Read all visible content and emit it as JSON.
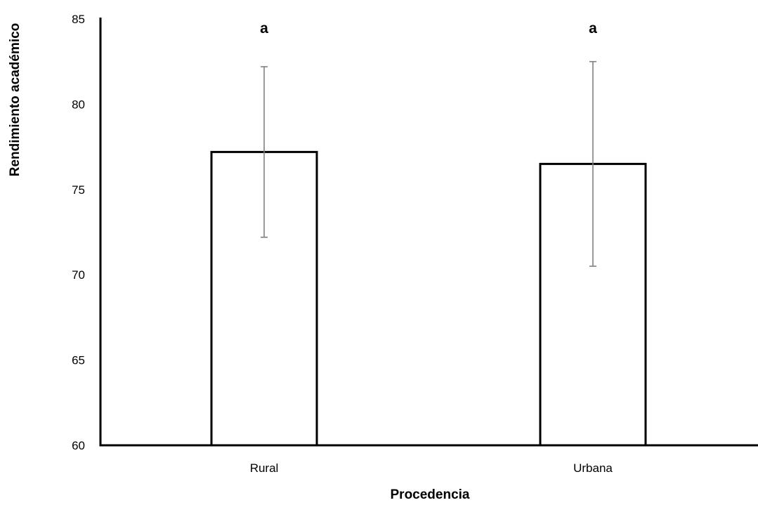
{
  "chart_data": {
    "type": "bar",
    "title": "",
    "xlabel": "Procedencia",
    "ylabel": "Rendimiento académico",
    "categories": [
      "Rural",
      "Urbana"
    ],
    "values": [
      77.2,
      76.5
    ],
    "error": [
      5.0,
      6.0
    ],
    "significance_labels": [
      "a",
      "a"
    ],
    "ylim": [
      60,
      85
    ],
    "yticks": [
      60,
      65,
      70,
      75,
      80,
      85
    ],
    "grid": false,
    "legend": "none",
    "colors": {
      "bar_fill": "#ffffff",
      "bar_stroke": "#000000",
      "error_bar": "#808080",
      "axis": "#000000"
    }
  }
}
